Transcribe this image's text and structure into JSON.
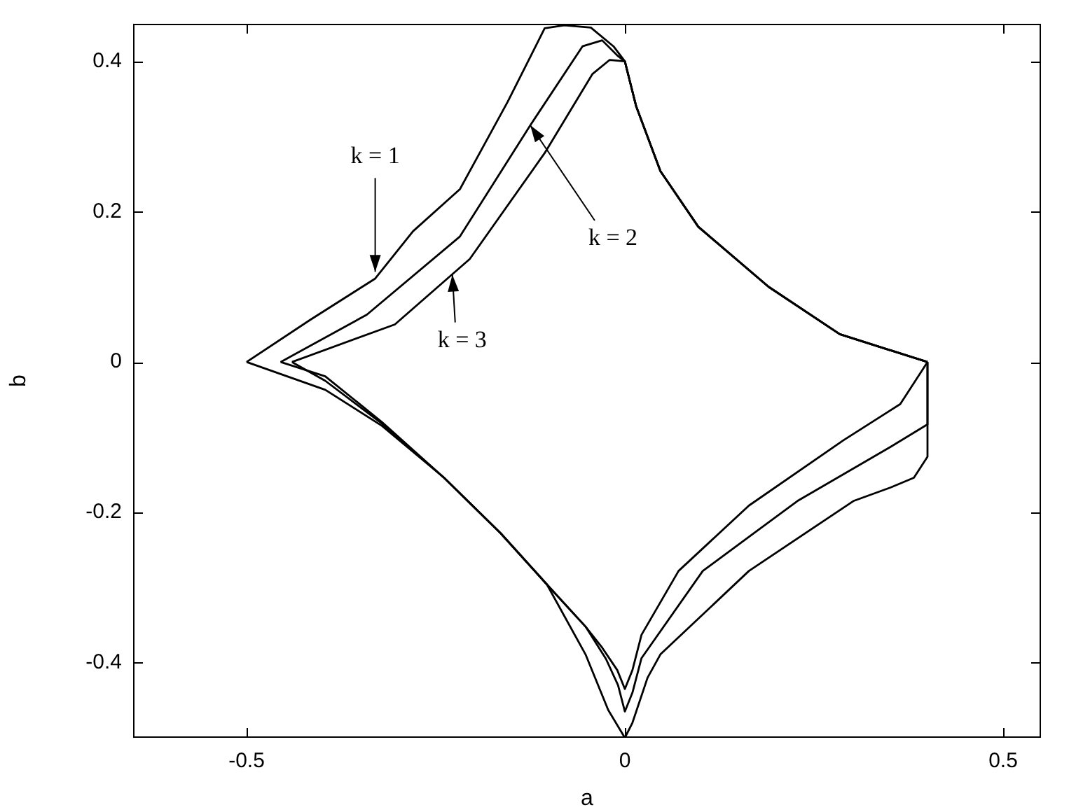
{
  "chart_data": {
    "type": "line",
    "xlabel": "a",
    "ylabel": "b",
    "xlim": [
      -0.65,
      0.55
    ],
    "ylim": [
      -0.5,
      0.45
    ],
    "xticks": [
      -0.5,
      0,
      0.5
    ],
    "yticks": [
      -0.4,
      -0.2,
      0,
      0.2,
      0.4
    ],
    "marker": "none",
    "line_style": "solid",
    "annotations": [
      {
        "text": "k = 1",
        "x": -0.33,
        "y": 0.12
      },
      {
        "text": "k = 2",
        "x": -0.125,
        "y": 0.315
      },
      {
        "text": "k = 3",
        "x": -0.228,
        "y": 0.116
      }
    ],
    "series": [
      {
        "color": "#000000",
        "x": [
          -0.5,
          -0.416,
          -0.33,
          -0.28,
          -0.218,
          -0.155,
          -0.106,
          -0.08,
          -0.045,
          -0.015,
          0,
          0.015,
          0.047,
          0.097,
          0.19,
          0.284,
          0.4
        ],
        "values": [
          0,
          0.056,
          0.111,
          0.174,
          0.23,
          0.346,
          0.444,
          0.448,
          0.445,
          0.42,
          0.4,
          0.34,
          0.254,
          0.18,
          0.1,
          0.037,
          0
        ]
      },
      {
        "color": "#000000",
        "x": [
          -0.5,
          -0.396,
          -0.321,
          -0.239,
          -0.164,
          -0.103,
          -0.052,
          -0.022,
          0,
          0.01,
          0.03,
          0.047,
          0.164,
          0.302,
          0.351,
          0.382,
          0.4,
          0.4
        ],
        "values": [
          0,
          -0.037,
          -0.085,
          -0.154,
          -0.228,
          -0.296,
          -0.389,
          -0.463,
          -0.5,
          -0.48,
          -0.42,
          -0.389,
          -0.278,
          -0.185,
          -0.167,
          -0.154,
          -0.126,
          0
        ]
      },
      {
        "color": "#000000",
        "x": [
          -0.455,
          -0.341,
          -0.218,
          -0.125,
          -0.056,
          -0.03,
          -0.009,
          0,
          0.015,
          0.047,
          0.097,
          0.19,
          0.284,
          0.4
        ],
        "values": [
          0,
          0.063,
          0.167,
          0.315,
          0.42,
          0.428,
          0.407,
          0.4,
          0.34,
          0.254,
          0.18,
          0.1,
          0.037,
          0
        ]
      },
      {
        "color": "#000000",
        "x": [
          -0.455,
          -0.396,
          -0.321,
          -0.239,
          -0.164,
          -0.103,
          -0.052,
          -0.025,
          -0.009,
          0,
          0.01,
          0.022,
          0.103,
          0.228,
          0.351,
          0.4,
          0.4
        ],
        "values": [
          0,
          -0.019,
          -0.08,
          -0.154,
          -0.228,
          -0.296,
          -0.352,
          -0.395,
          -0.43,
          -0.465,
          -0.44,
          -0.394,
          -0.278,
          -0.185,
          -0.113,
          -0.083,
          0
        ]
      },
      {
        "color": "#000000",
        "x": [
          -0.44,
          -0.304,
          -0.205,
          -0.106,
          -0.043,
          -0.02,
          0,
          0.015,
          0.047,
          0.097,
          0.19,
          0.284,
          0.4
        ],
        "values": [
          0,
          0.05,
          0.137,
          0.278,
          0.383,
          0.402,
          0.4,
          0.34,
          0.254,
          0.18,
          0.1,
          0.037,
          0
        ]
      },
      {
        "color": "#000000",
        "x": [
          -0.44,
          -0.396,
          -0.321,
          -0.239,
          -0.164,
          -0.103,
          -0.052,
          -0.03,
          -0.01,
          0,
          0.01,
          0.022,
          0.071,
          0.164,
          0.289,
          0.364,
          0.4
        ],
        "values": [
          0,
          -0.025,
          -0.082,
          -0.154,
          -0.228,
          -0.296,
          -0.352,
          -0.38,
          -0.41,
          -0.435,
          -0.41,
          -0.363,
          -0.278,
          -0.191,
          -0.104,
          -0.056,
          0
        ]
      }
    ]
  }
}
